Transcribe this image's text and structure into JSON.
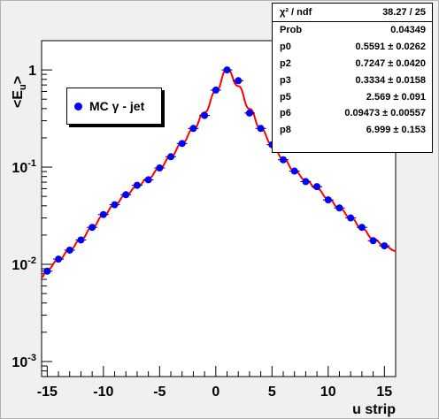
{
  "chart_data": {
    "type": "scatter",
    "xlabel": "u strip",
    "ylabel": "<E_u>",
    "xlim": [
      -15.5,
      16
    ],
    "ylim": [
      0.0007,
      2
    ],
    "yscale": "log",
    "x_ticks": [
      "-15",
      "-10",
      "-5",
      "0",
      "5",
      "10",
      "15"
    ],
    "y_ticks": [
      "10^-3",
      "10^-2",
      "10^-1",
      "1"
    ],
    "grid": false,
    "legend": {
      "position": "top-left",
      "label": "MC γ - jet"
    },
    "marker_color": "#0000ff",
    "fit_color": "#ff0000",
    "series": [
      {
        "name": "MC γ - jet",
        "x": [
          -15,
          -14,
          -13,
          -12,
          -11,
          -10,
          -9,
          -8,
          -7,
          -6,
          -5,
          -4,
          -3,
          -2,
          -1,
          0,
          1,
          2,
          3,
          4,
          5,
          6,
          7,
          8,
          9,
          10,
          11,
          12,
          13,
          14,
          15
        ],
        "values": [
          0.0085,
          0.0113,
          0.014,
          0.0178,
          0.024,
          0.0325,
          0.041,
          0.052,
          0.065,
          0.074,
          0.098,
          0.128,
          0.175,
          0.25,
          0.34,
          0.62,
          1.0,
          0.775,
          0.36,
          0.25,
          0.17,
          0.119,
          0.091,
          0.071,
          0.063,
          0.046,
          0.038,
          0.03,
          0.024,
          0.0175,
          0.0155
        ]
      }
    ],
    "fit": {
      "type": "line",
      "color": "#ff0000"
    }
  },
  "stats": [
    {
      "name": "χ² / ndf",
      "value": "38.27 / 25"
    },
    {
      "name": "Prob",
      "value": "0.04349"
    },
    {
      "name": "p0",
      "value": "0.5591 ± 0.0262"
    },
    {
      "name": "p2",
      "value": "0.7247 ± 0.0420"
    },
    {
      "name": "p3",
      "value": "0.3334 ± 0.0158"
    },
    {
      "name": "p5",
      "value": "2.569 ± 0.091"
    },
    {
      "name": "p6",
      "value": "0.09473 ± 0.00557"
    },
    {
      "name": "p8",
      "value": "6.999 ± 0.153"
    }
  ]
}
